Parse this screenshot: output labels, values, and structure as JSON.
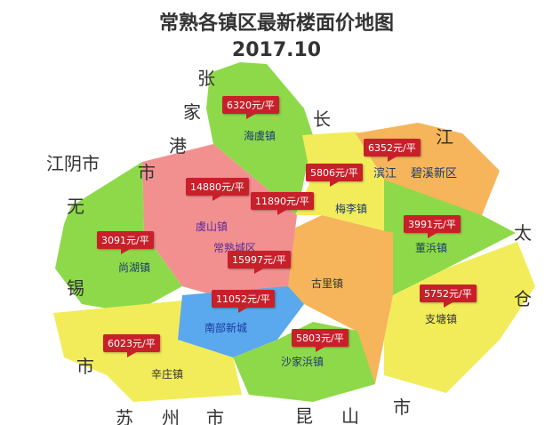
{
  "title": "常熟各镇区最新楼面价地图",
  "subtitle": "2017.10",
  "neighbors": [
    "张",
    "家",
    "港",
    "市",
    "江阴市",
    "无",
    "锡",
    "市",
    "苏",
    "州",
    "市",
    "昆",
    "山",
    "市",
    "长",
    "江",
    "太",
    "仓"
  ],
  "regions": [
    {
      "name": "海虞镇",
      "price": "6320元/平",
      "color": "#8ed94a"
    },
    {
      "name": "滨江",
      "price": "6352元/平",
      "color": "#f6b55a"
    },
    {
      "name": "碧溪新区",
      "price": "",
      "color": "#f6b55a"
    },
    {
      "name": "梅李镇",
      "price": "5806元/平",
      "color": "#f2ec5a"
    },
    {
      "name": "虞山镇",
      "price": "14880元/平",
      "color": "#f29090"
    },
    {
      "name": "常熟城区",
      "price": "11890元/平",
      "color": "#f29090"
    },
    {
      "name": "常熟城区-2",
      "price": "15997元/平",
      "color": "#f29090"
    },
    {
      "name": "董浜镇",
      "price": "3991元/平",
      "color": "#8ed94a"
    },
    {
      "name": "尚湖镇",
      "price": "3091元/平",
      "color": "#8ed94a"
    },
    {
      "name": "古里镇",
      "price": "",
      "color": "#f6b55a"
    },
    {
      "name": "南部新城",
      "price": "11052元/平",
      "color": "#5aa8ee"
    },
    {
      "name": "支塘镇",
      "price": "5752元/平",
      "color": "#f2ec5a"
    },
    {
      "name": "辛庄镇",
      "price": "6023元/平",
      "color": "#f2ec5a"
    },
    {
      "name": "沙家浜镇",
      "price": "5803元/平",
      "color": "#8ed94a"
    }
  ]
}
